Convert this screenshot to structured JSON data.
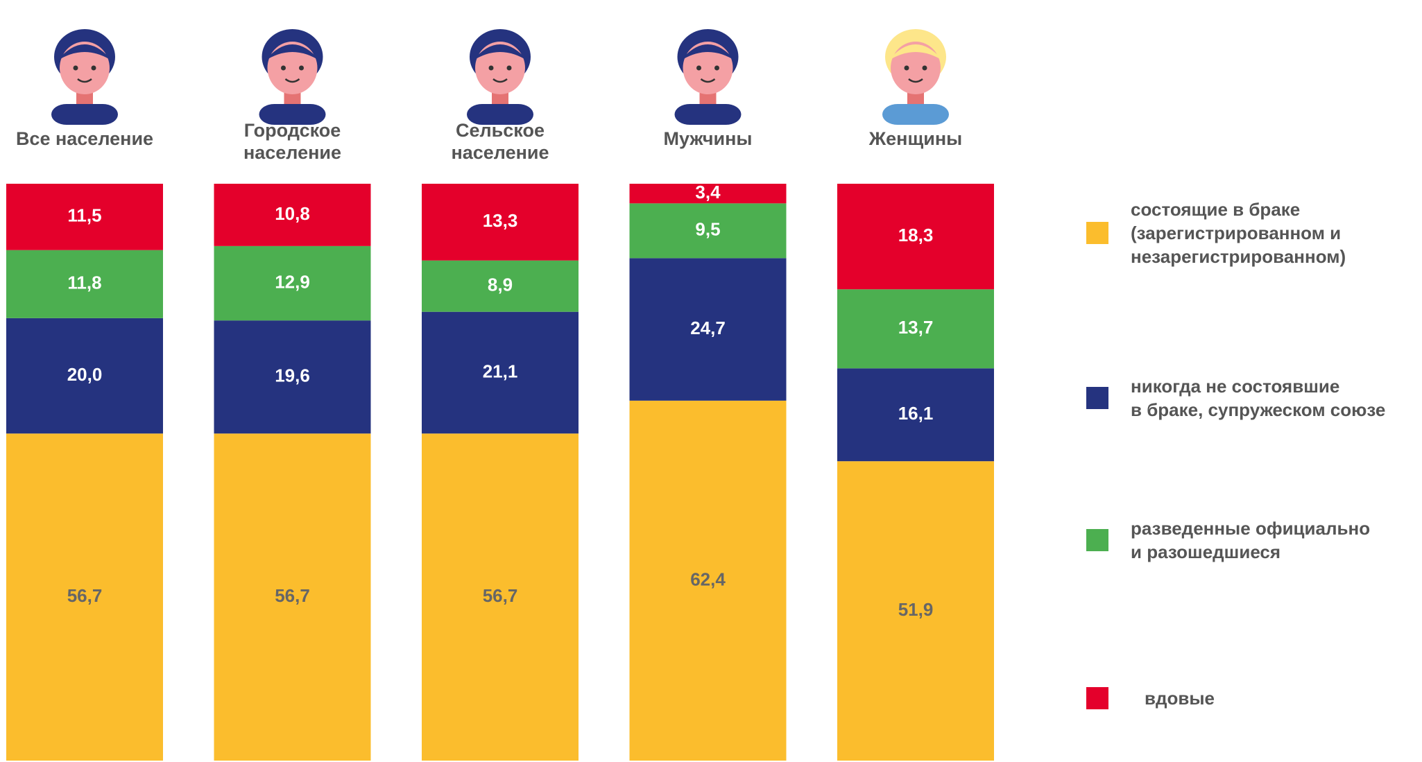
{
  "chart_data": {
    "type": "stacked_bar",
    "categories": [
      "Все население",
      "Городское\nнаселение",
      "Сельское\nнаселение",
      "Мужчины",
      "Женщины"
    ],
    "series": [
      {
        "name": "состоящие в браке\n(зарегистрированном и\nнезарегистрированном)",
        "color": "#FBBD2D",
        "values": [
          56.7,
          56.7,
          56.7,
          62.4,
          51.9
        ],
        "value_labels": [
          "56,7",
          "56,7",
          "56,7",
          "62,4",
          "51,9"
        ]
      },
      {
        "name": "никогда не состоявшие\nв браке, супружеском союзе",
        "color": "#25337F",
        "values": [
          20.0,
          19.6,
          21.1,
          24.7,
          16.1
        ],
        "value_labels": [
          "20,0",
          "19,6",
          "21,1",
          "24,7",
          "16,1"
        ]
      },
      {
        "name": "разведенные официально\nи разошедшиеся",
        "color": "#4CAF50",
        "values": [
          11.8,
          12.9,
          8.9,
          9.5,
          13.7
        ],
        "value_labels": [
          "11,8",
          "12,9",
          "8,9",
          "9,5",
          "13,7"
        ]
      },
      {
        "name": "вдовые",
        "color": "#E4002B",
        "values": [
          11.5,
          10.8,
          13.3,
          3.4,
          18.3
        ],
        "value_labels": [
          "11,5",
          "10,8",
          "13,3",
          "3,4",
          "18,3"
        ]
      }
    ]
  }
}
